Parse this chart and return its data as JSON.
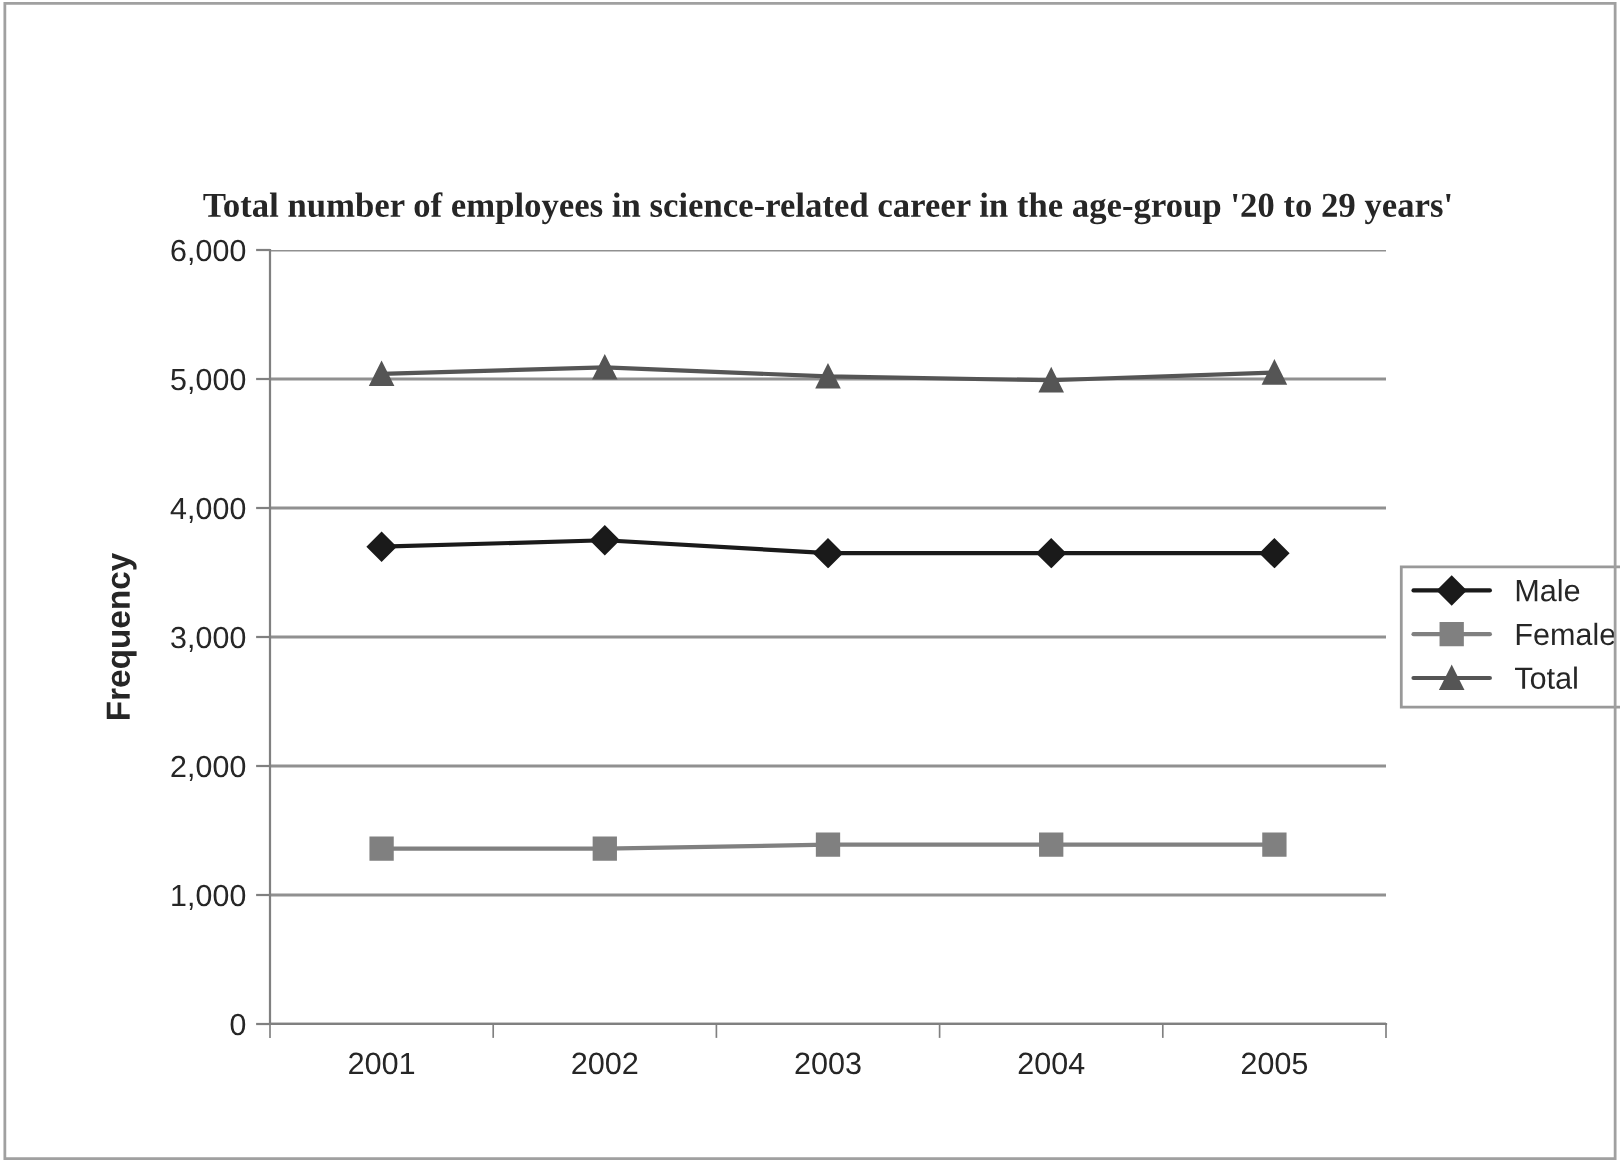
{
  "chart_data": {
    "type": "line",
    "title": "Total number of employees in science-related career in the age-group '20 to 29 years'",
    "ylabel": "Frequency",
    "categories": [
      "2001",
      "2002",
      "2003",
      "2004",
      "2005"
    ],
    "series": [
      {
        "name": "Male",
        "color": "#1a1a1a",
        "marker": "diamond",
        "values": [
          3700,
          3750,
          3650,
          3650,
          3650
        ]
      },
      {
        "name": "Female",
        "color": "#808080",
        "marker": "square",
        "values": [
          1360,
          1360,
          1390,
          1390,
          1390
        ]
      },
      {
        "name": "Total",
        "color": "#555555",
        "marker": "triangle",
        "values": [
          5040,
          5090,
          5020,
          4990,
          5050
        ]
      }
    ],
    "ylim": [
      0,
      6000
    ],
    "yticks": [
      {
        "value": 0,
        "label": "0"
      },
      {
        "value": 1000,
        "label": "1,000"
      },
      {
        "value": 2000,
        "label": "2,000"
      },
      {
        "value": 3000,
        "label": "3,000"
      },
      {
        "value": 4000,
        "label": "4,000"
      },
      {
        "value": 5000,
        "label": "5,000"
      },
      {
        "value": 6000,
        "label": "6,000"
      }
    ],
    "grid": "y",
    "legend": "right",
    "line_style": "solid"
  }
}
